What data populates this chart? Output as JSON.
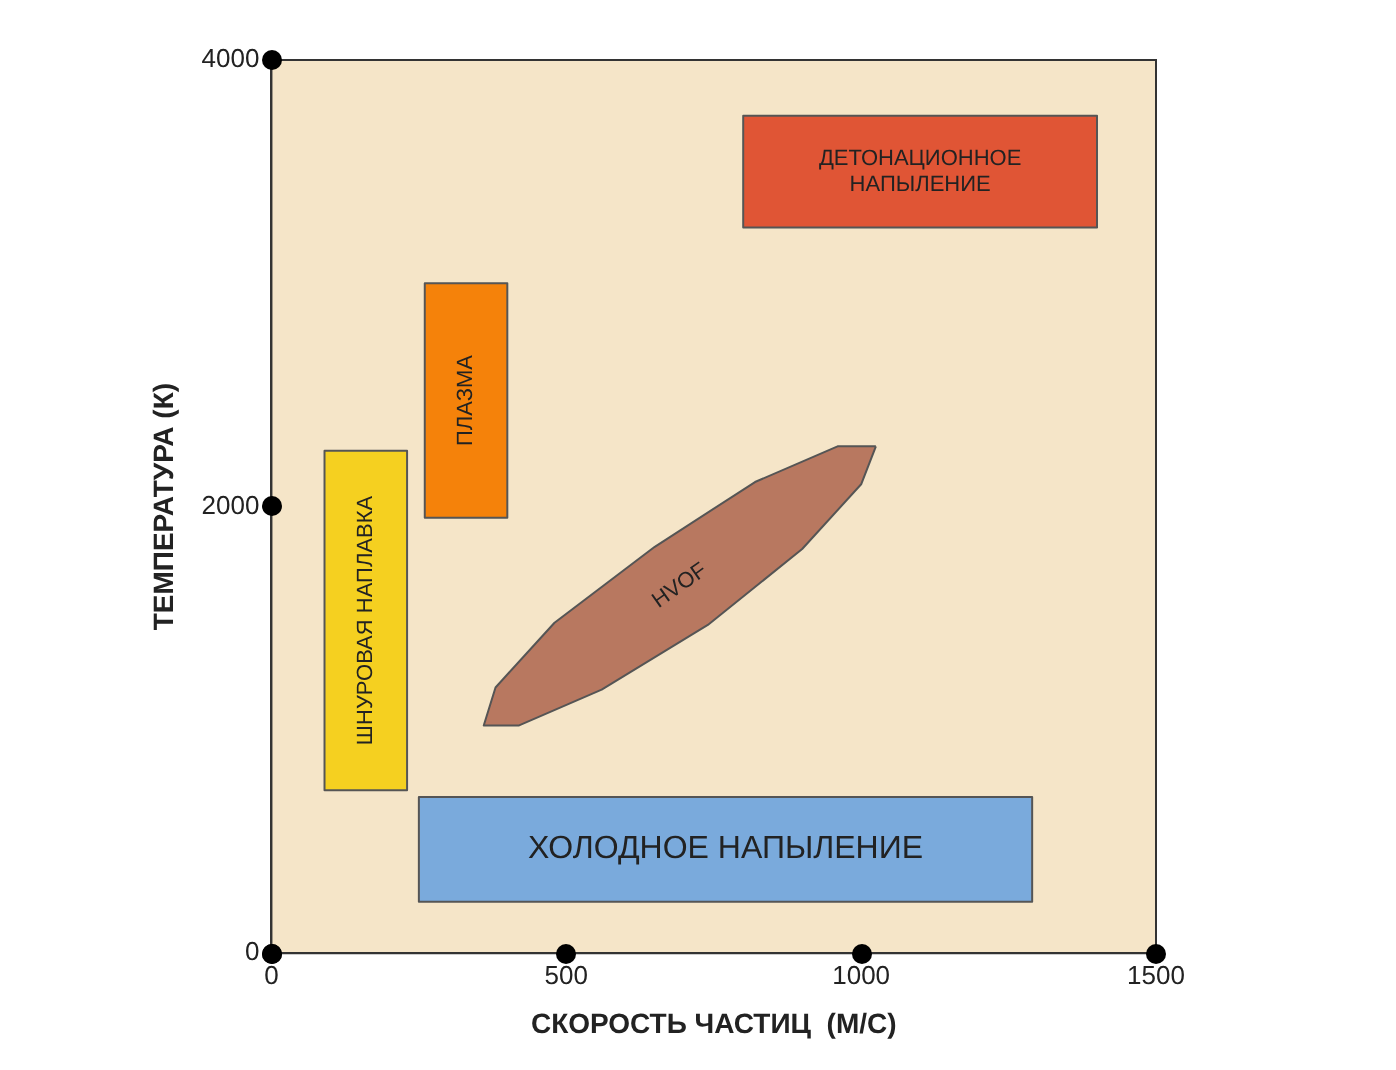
{
  "chart_data": {
    "type": "area",
    "xlabel": "СКОРОСТЬ ЧАСТИЦ  (М/С)",
    "ylabel": "ТЕМПЕРАТУРА (К)",
    "xlim": [
      0,
      1500
    ],
    "xticks": [
      0,
      500,
      1000,
      1500
    ],
    "ylim": [
      0,
      4000
    ],
    "yticks": [
      0,
      2000,
      4000
    ],
    "grid": false,
    "legend": false,
    "series": [
      {
        "name": "ДЕТОНАЦИОННОЕ НАПЫЛЕНИЕ",
        "color": "#e05535",
        "x": [
          800,
          1400,
          1400,
          800,
          800
        ],
        "values": [
          3250,
          3250,
          3750,
          3750,
          3250
        ]
      },
      {
        "name": "ПЛАЗМА",
        "color": "#f5820a",
        "x": [
          260,
          400,
          400,
          260,
          260
        ],
        "values": [
          1950,
          1950,
          3000,
          3000,
          1950
        ]
      },
      {
        "name": "ШНУРОВАЯ НАПЛАВКА",
        "color": "#f5d020",
        "x": [
          90,
          230,
          230,
          90,
          90
        ],
        "values": [
          730,
          730,
          2250,
          2250,
          730
        ]
      },
      {
        "name": "ХОЛОДНОЕ НАПЫЛЕНИЕ",
        "color": "#7aaadc",
        "x": [
          250,
          1290,
          1290,
          250,
          250
        ],
        "values": [
          230,
          230,
          700,
          700,
          230
        ]
      },
      {
        "name": "HVOF",
        "color": "#b87860",
        "x": [
          1025,
          1000,
          900,
          740,
          560,
          420,
          360,
          380,
          480,
          650,
          820,
          960,
          1025
        ],
        "values": [
          2270,
          2100,
          1810,
          1470,
          1180,
          1020,
          1020,
          1190,
          1480,
          1820,
          2110,
          2270,
          2270
        ]
      }
    ]
  }
}
